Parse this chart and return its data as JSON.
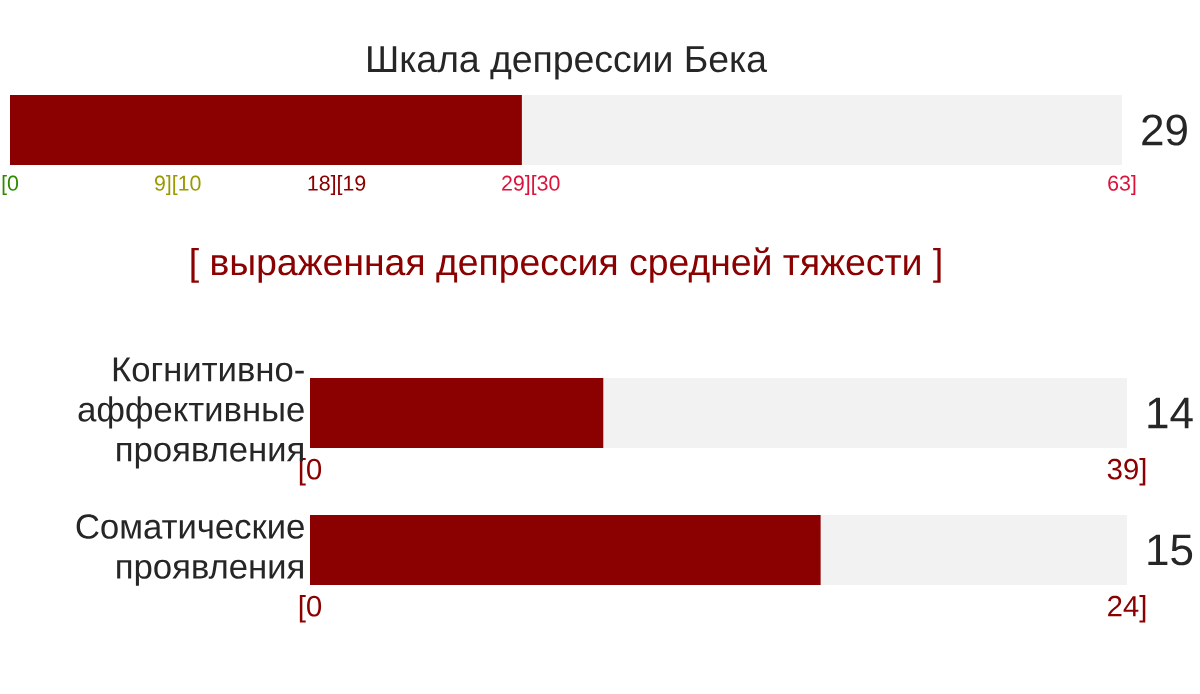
{
  "chart_data": [
    {
      "type": "bar",
      "orientation": "horizontal",
      "title": "Шкала депрессии Бека",
      "categories": [
        null
      ],
      "values": [
        29
      ],
      "color": "#8b0000",
      "xlim": [
        0,
        63
      ],
      "xticks": [
        {
          "value": 0,
          "label": "[0"
        },
        {
          "value": 9.5,
          "label": "9][10"
        },
        {
          "value": 18.5,
          "label": "18][19"
        },
        {
          "value": 29.5,
          "label": "29][30"
        },
        {
          "value": 63,
          "label": "63]"
        }
      ],
      "annotations": [
        "29",
        "[ выраженная депрессия средней тяжести ]"
      ]
    },
    {
      "type": "bar",
      "orientation": "horizontal",
      "categories": [
        "Когнитивно-аффективные проявления"
      ],
      "values": [
        14
      ],
      "color": "#8b0000",
      "xlim": [
        0,
        39
      ],
      "xticks": [
        {
          "value": 0,
          "label": "[0"
        },
        {
          "value": 39,
          "label": "39]"
        }
      ],
      "annotations": [
        "14"
      ]
    },
    {
      "type": "bar",
      "orientation": "horizontal",
      "categories": [
        "Соматические проявления"
      ],
      "values": [
        15
      ],
      "color": "#8b0000",
      "xlim": [
        0,
        24
      ],
      "xticks": [
        {
          "value": 0,
          "label": "[0"
        },
        {
          "value": 24,
          "label": "24]"
        }
      ],
      "annotations": [
        "15"
      ]
    }
  ]
}
